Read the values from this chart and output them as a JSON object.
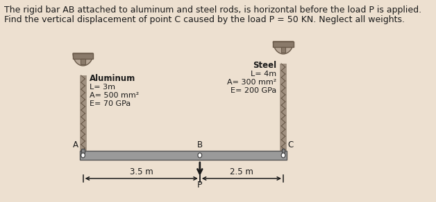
{
  "bg_color": "#ede0d0",
  "title_line1": "The rigid bar AB attached to aluminum and steel rods, is horizontal before the load P is applied.",
  "title_line2": "Find the vertical displacement of point C caused by the load P = 50 KN. Neglect all weights.",
  "title_fontsize": 9.0,
  "al_label": "Aluminum",
  "al_L": "L= 3m",
  "al_A": "A= 500 mm²",
  "al_E": "E= 70 GPa",
  "st_label": "Steel",
  "st_L": "L= 4m",
  "st_A": "A= 300 mm²",
  "st_E": "E= 200 GPa",
  "pt_A": "A",
  "pt_B": "B",
  "pt_C": "C",
  "dim_AB": "3.5 m",
  "dim_BC": "2.5 m",
  "load_label": "P",
  "bar_color": "#9a9a9a",
  "rod_color": "#a09080",
  "rod_dark": "#6a5a4a",
  "anchor_top": "#b8a898",
  "anchor_mid": "#8a7a6a",
  "anchor_dark": "#6a5a4a",
  "text_color": "#1a1a1a",
  "arrow_color": "#1a1a1a"
}
